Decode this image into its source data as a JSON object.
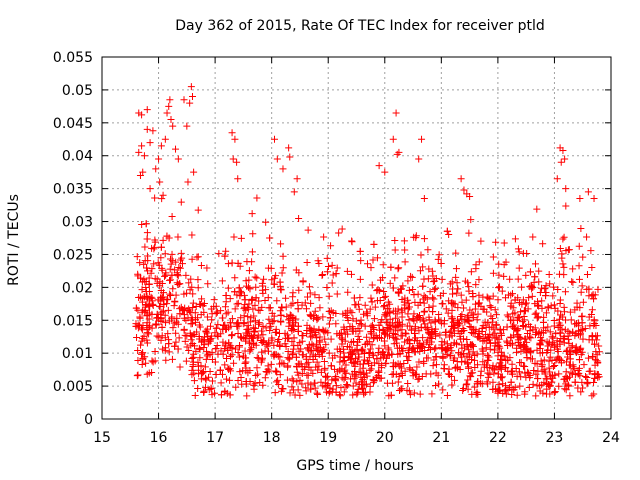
{
  "chart_data": {
    "type": "scatter",
    "title": "Day 362 of 2015, Rate Of TEC Index for receiver ptld",
    "xlabel": "GPS time / hours",
    "ylabel": "ROTI / TECUs",
    "xlim": [
      15,
      24
    ],
    "ylim": [
      0,
      0.055
    ],
    "xticks": [
      15,
      16,
      17,
      18,
      19,
      20,
      21,
      22,
      23,
      24
    ],
    "xtick_labels": [
      "15",
      "16",
      "17",
      "18",
      "19",
      "20",
      "21",
      "22",
      "23",
      "24"
    ],
    "yticks": [
      0,
      0.005,
      0.01,
      0.015,
      0.02,
      0.025,
      0.03,
      0.035,
      0.04,
      0.045,
      0.05,
      0.055
    ],
    "ytick_labels": [
      "0",
      "0.005",
      "0.01",
      "0.015",
      "0.02",
      "0.025",
      "0.03",
      "0.035",
      "0.04",
      "0.045",
      "0.05",
      "0.055"
    ],
    "grid": true,
    "marker": "+",
    "color": "#ff0000",
    "time_range": [
      15.6,
      23.8
    ],
    "points": [
      [
        15.65,
        0.0465
      ],
      [
        15.7,
        0.0462
      ],
      [
        15.8,
        0.047
      ],
      [
        15.65,
        0.0405
      ],
      [
        15.7,
        0.0415
      ],
      [
        15.75,
        0.04
      ],
      [
        15.8,
        0.044
      ],
      [
        15.85,
        0.042
      ],
      [
        15.9,
        0.0438
      ],
      [
        15.68,
        0.037
      ],
      [
        15.72,
        0.0375
      ],
      [
        15.85,
        0.035
      ],
      [
        15.95,
        0.038
      ],
      [
        16.0,
        0.0395
      ],
      [
        16.05,
        0.0415
      ],
      [
        16.02,
        0.036
      ],
      [
        16.08,
        0.034
      ],
      [
        16.15,
        0.0465
      ],
      [
        16.18,
        0.0475
      ],
      [
        16.2,
        0.0485
      ],
      [
        16.22,
        0.0455
      ],
      [
        16.25,
        0.0445
      ],
      [
        16.3,
        0.041
      ],
      [
        16.12,
        0.0425
      ],
      [
        16.35,
        0.0395
      ],
      [
        16.45,
        0.0485
      ],
      [
        16.58,
        0.0505
      ],
      [
        16.6,
        0.049
      ],
      [
        16.55,
        0.048
      ],
      [
        16.5,
        0.0445
      ],
      [
        16.52,
        0.036
      ],
      [
        16.62,
        0.0375
      ],
      [
        17.3,
        0.0435
      ],
      [
        17.35,
        0.0425
      ],
      [
        17.32,
        0.0395
      ],
      [
        17.38,
        0.039
      ],
      [
        17.4,
        0.0365
      ],
      [
        18.05,
        0.0425
      ],
      [
        18.1,
        0.0395
      ],
      [
        18.2,
        0.038
      ],
      [
        18.3,
        0.0412
      ],
      [
        18.32,
        0.0398
      ],
      [
        18.45,
        0.0365
      ],
      [
        18.4,
        0.0345
      ],
      [
        19.9,
        0.0385
      ],
      [
        20.0,
        0.0375
      ],
      [
        20.2,
        0.0465
      ],
      [
        20.25,
        0.0405
      ],
      [
        20.22,
        0.0402
      ],
      [
        20.15,
        0.0425
      ],
      [
        20.65,
        0.0425
      ],
      [
        20.6,
        0.0395
      ],
      [
        20.7,
        0.0335
      ],
      [
        21.35,
        0.0365
      ],
      [
        21.4,
        0.0348
      ],
      [
        21.5,
        0.0338
      ],
      [
        21.45,
        0.0342
      ],
      [
        23.1,
        0.0412
      ],
      [
        23.15,
        0.0408
      ],
      [
        23.18,
        0.0395
      ],
      [
        23.12,
        0.039
      ],
      [
        23.05,
        0.0365
      ],
      [
        23.2,
        0.035
      ],
      [
        23.45,
        0.0335
      ],
      [
        23.6,
        0.0345
      ],
      [
        23.7,
        0.0335
      ]
    ]
  }
}
